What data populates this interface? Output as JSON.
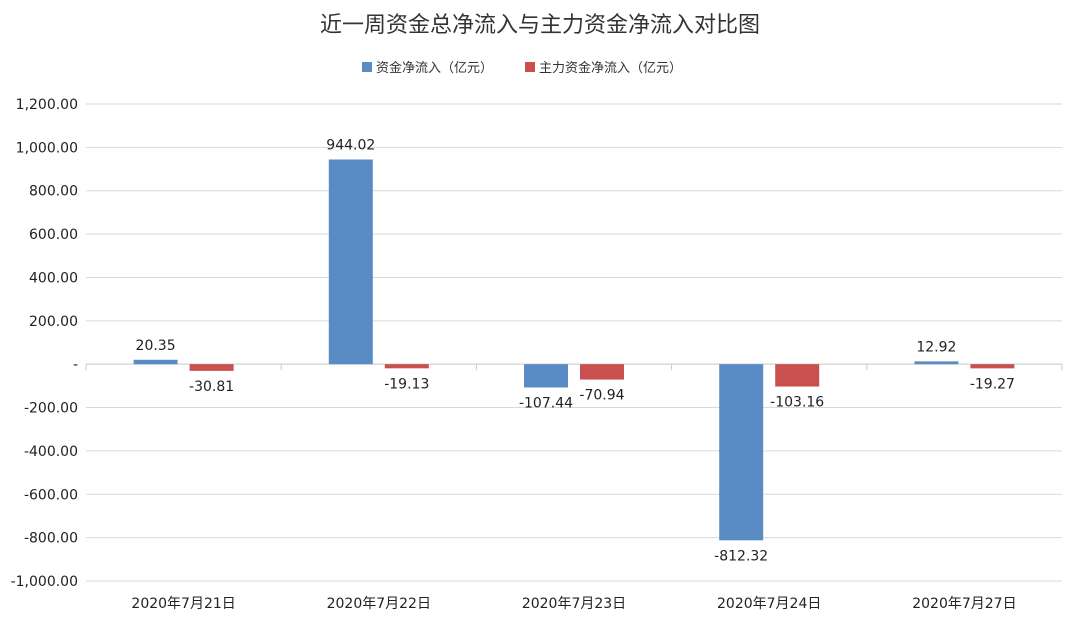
{
  "chart_data": {
    "type": "bar",
    "title": "近一周资金总净流入与主力资金净流入对比图",
    "categories": [
      "2020年7月21日",
      "2020年7月22日",
      "2020年7月23日",
      "2020年7月24日",
      "2020年7月27日"
    ],
    "series": [
      {
        "name": "资金净流入（亿元）",
        "color": "#5b8bc5",
        "values": [
          20.35,
          944.02,
          -107.44,
          -812.32,
          12.92
        ],
        "labels": [
          "20.35",
          "944.02",
          "-107.44",
          "-812.32",
          "12.92"
        ]
      },
      {
        "name": "主力资金净流入（亿元）",
        "color": "#c9504e",
        "values": [
          -30.81,
          -19.13,
          -70.94,
          -103.16,
          -19.27
        ],
        "labels": [
          "-30.81",
          "-19.13",
          "-70.94",
          "-103.16",
          "-19.27"
        ]
      }
    ],
    "ylim": [
      -1000,
      1200
    ],
    "yticks": [
      {
        "value": 1200,
        "label": "1,200.00"
      },
      {
        "value": 1000,
        "label": "1,000.00"
      },
      {
        "value": 800,
        "label": "800.00"
      },
      {
        "value": 600,
        "label": "600.00"
      },
      {
        "value": 400,
        "label": "400.00"
      },
      {
        "value": 200,
        "label": "200.00"
      },
      {
        "value": 0,
        "label": "-"
      },
      {
        "value": -200,
        "label": "-200.00"
      },
      {
        "value": -400,
        "label": "-400.00"
      },
      {
        "value": -600,
        "label": "-600.00"
      },
      {
        "value": -800,
        "label": "-800.00"
      },
      {
        "value": -1000,
        "label": "-1,000.00"
      }
    ],
    "xlabel": "",
    "ylabel": "",
    "grid": true,
    "legend_position": "top-center"
  }
}
